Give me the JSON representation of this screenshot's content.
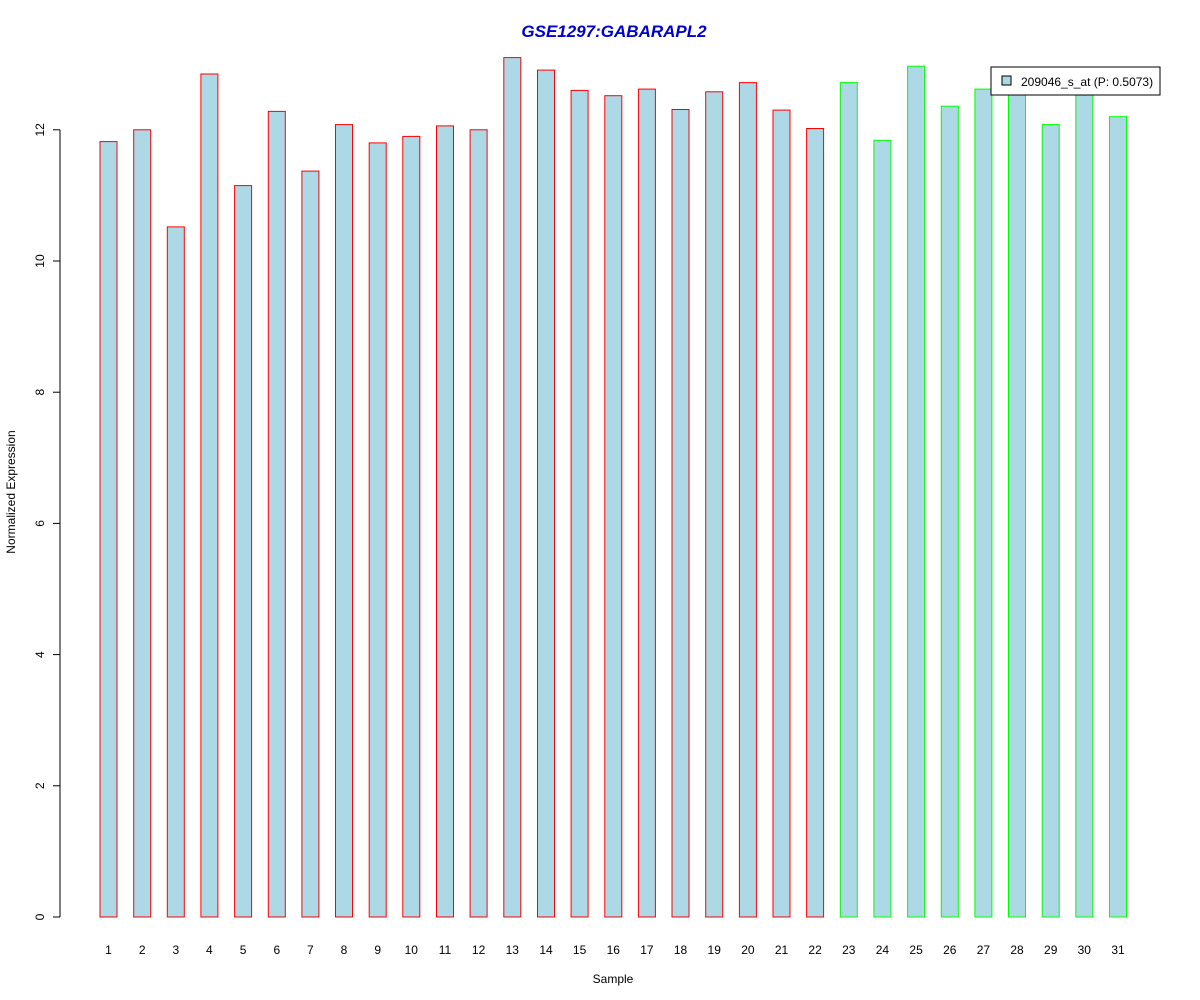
{
  "chart_data": {
    "type": "bar",
    "title": "GSE1297:GABARAPL2",
    "xlabel": "Sample",
    "ylabel": "Normalized Expression",
    "ylim": [
      0,
      13.3
    ],
    "yticks": [
      0,
      2,
      4,
      6,
      8,
      10,
      12
    ],
    "categories": [
      "1",
      "2",
      "3",
      "4",
      "5",
      "6",
      "7",
      "8",
      "9",
      "10",
      "11",
      "12",
      "13",
      "14",
      "15",
      "16",
      "17",
      "18",
      "19",
      "20",
      "21",
      "22",
      "23",
      "24",
      "25",
      "26",
      "27",
      "28",
      "29",
      "30",
      "31"
    ],
    "series": [
      {
        "name": "209046_s_at (P: 0.5073)",
        "values": [
          11.82,
          12.0,
          10.52,
          12.85,
          11.15,
          12.28,
          11.37,
          12.08,
          11.8,
          11.9,
          12.06,
          12.0,
          13.1,
          12.91,
          12.6,
          12.52,
          12.62,
          12.31,
          12.58,
          12.72,
          12.3,
          12.02,
          12.72,
          11.84,
          12.97,
          12.36,
          12.62,
          12.78,
          12.08,
          12.72,
          12.2
        ]
      }
    ],
    "bar_border_colors": [
      "#ff0000",
      "#ff0000",
      "#ff0000",
      "#ff0000",
      "#ff0000",
      "#ff0000",
      "#ff0000",
      "#ff0000",
      "#ff0000",
      "#ff0000",
      "#ff0000",
      "#ff0000",
      "#ff0000",
      "#ff0000",
      "#ff0000",
      "#ff0000",
      "#ff0000",
      "#ff0000",
      "#ff0000",
      "#ff0000",
      "#ff0000",
      "#ff0000",
      "#00ff00",
      "#00ff00",
      "#00ff00",
      "#00ff00",
      "#00ff00",
      "#00ff00",
      "#00ff00",
      "#00ff00",
      "#00ff00"
    ],
    "legend_position": "top-right",
    "grid": false
  },
  "colors": {
    "bar_fill": "#add8e6",
    "title": "#0000cc",
    "axis": "#000000"
  }
}
